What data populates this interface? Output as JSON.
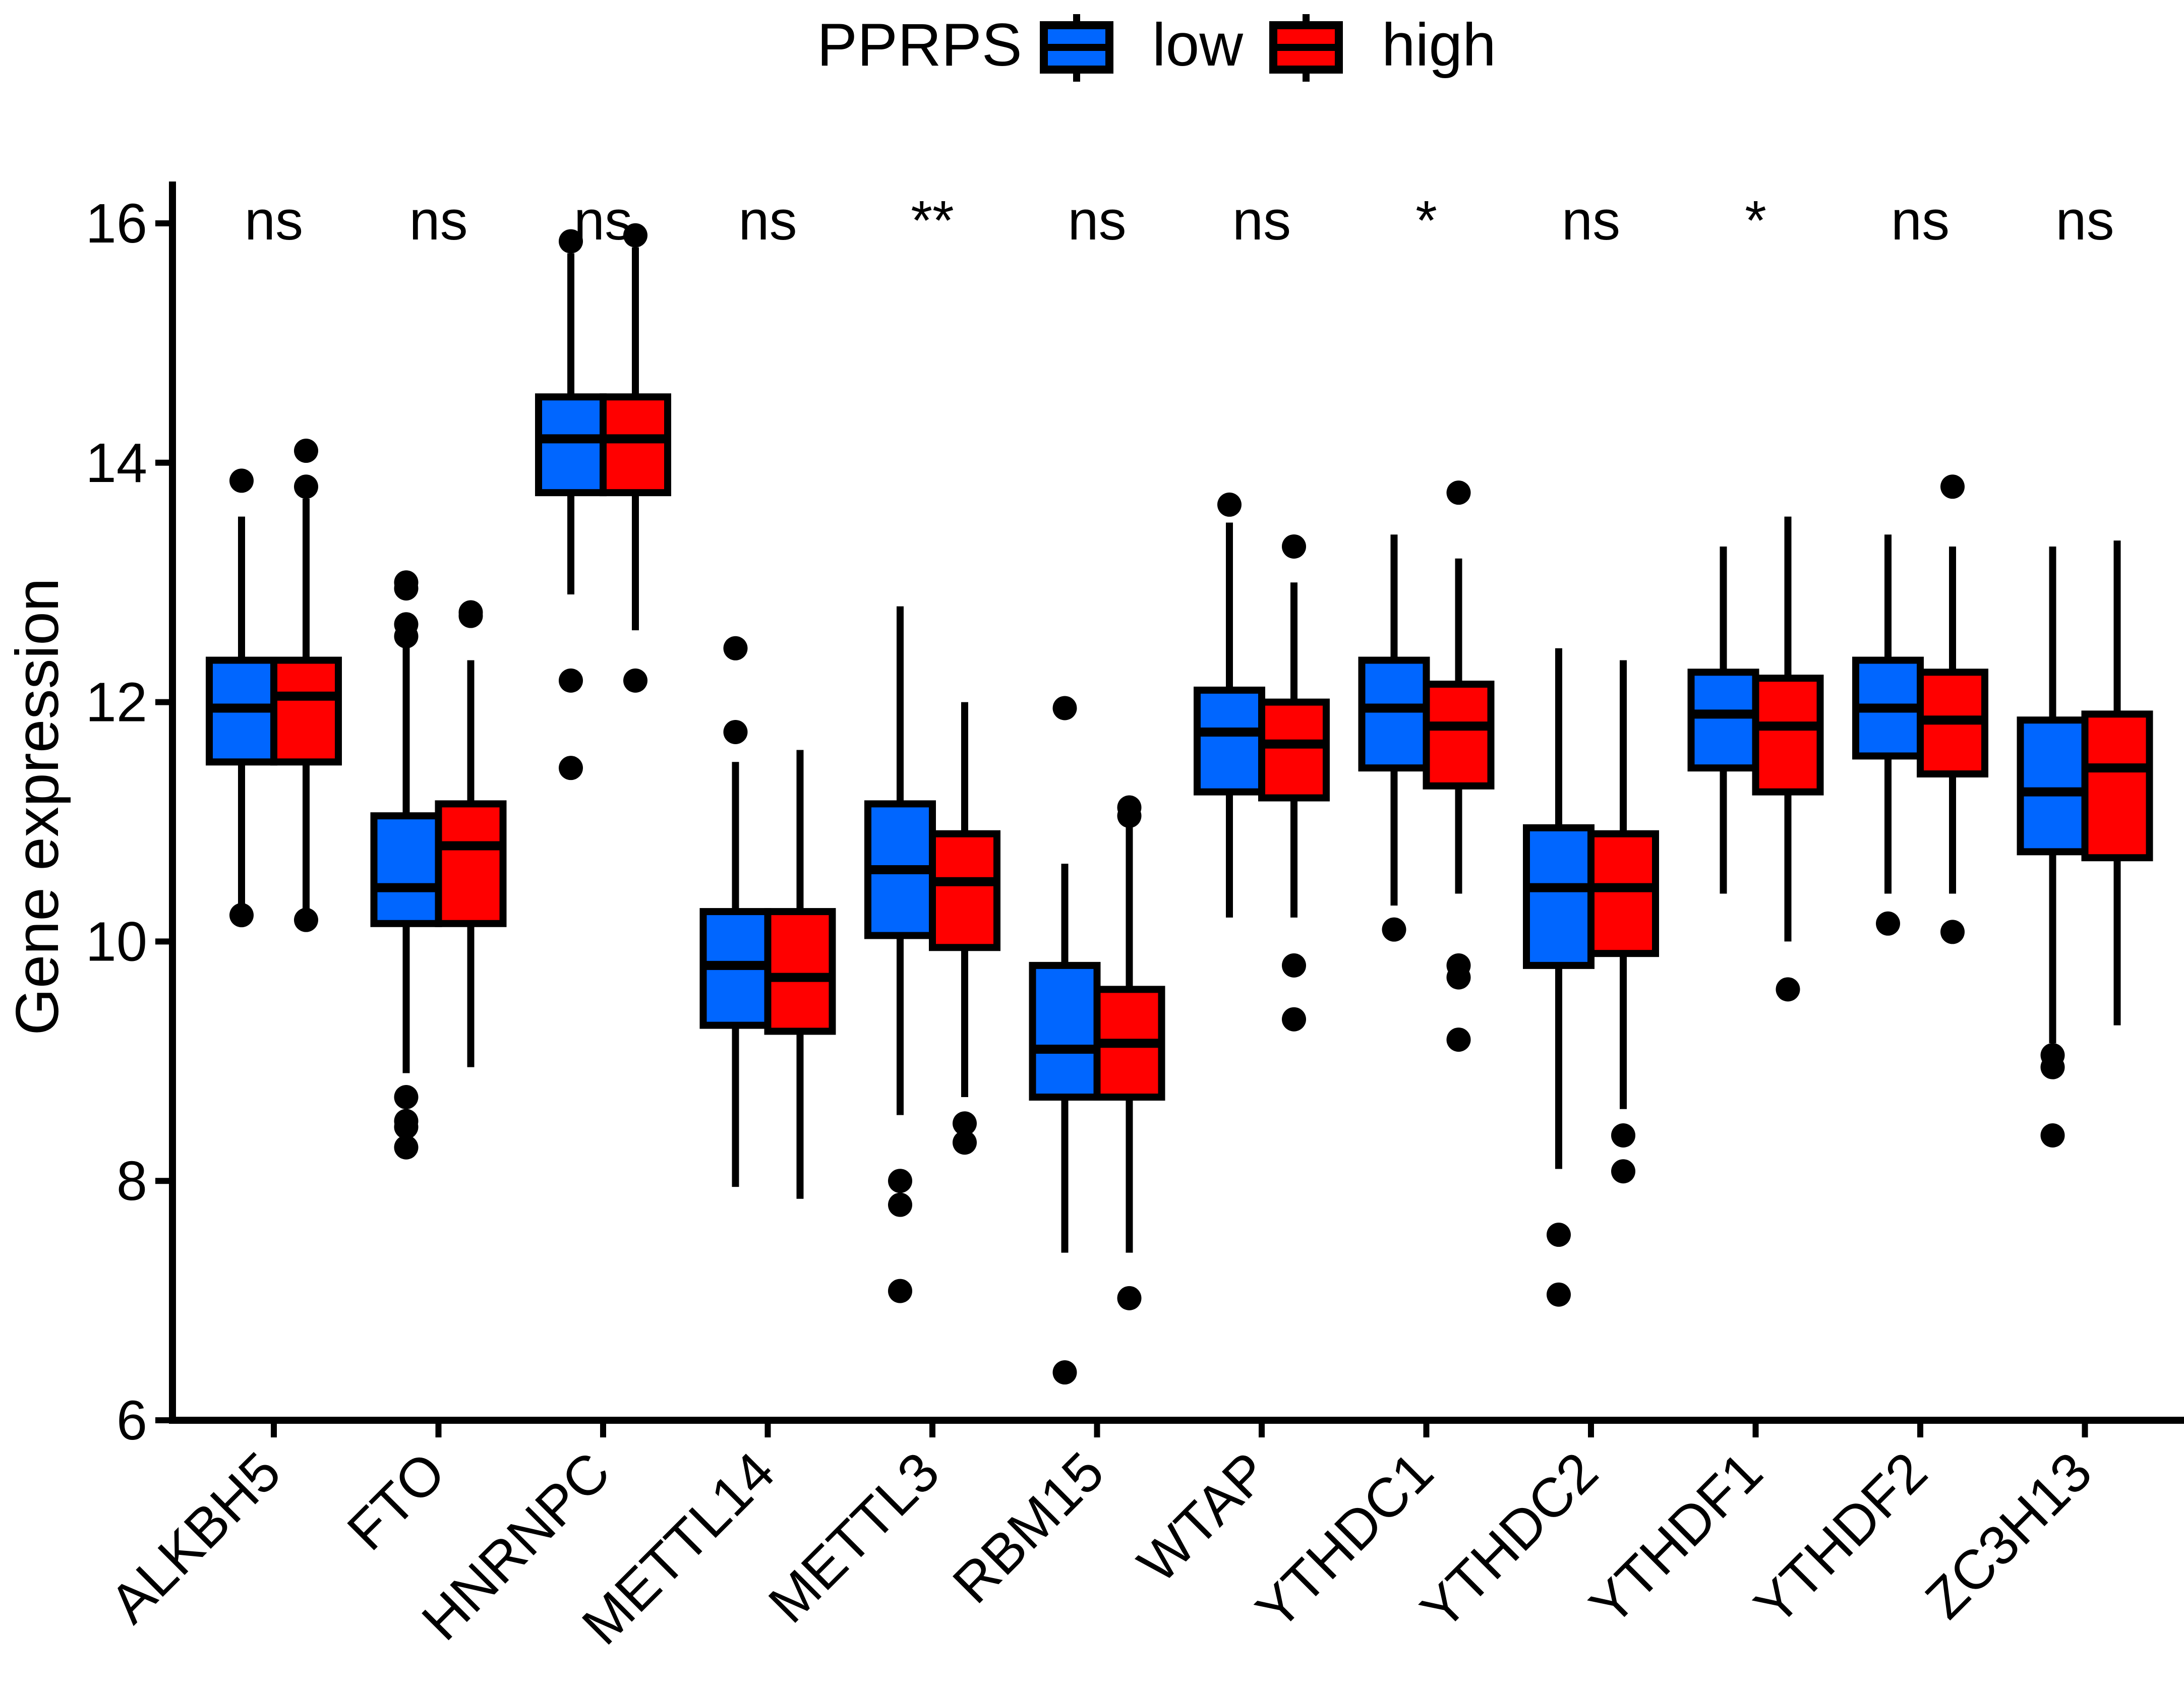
{
  "chart_data": {
    "type": "boxplot",
    "title": "",
    "xlabel": "",
    "ylabel": "Gene expression",
    "ylim": [
      6,
      16.3
    ],
    "yticks": [
      6,
      8,
      10,
      12,
      14,
      16
    ],
    "legend": {
      "title": "PPRPS",
      "position": "top",
      "entries": [
        {
          "name": "low",
          "color": "#0066ff"
        },
        {
          "name": "high",
          "color": "#ff0000"
        }
      ]
    },
    "categories": [
      "ALKBH5",
      "FTO",
      "HNRNPC",
      "METTL14",
      "METTL3",
      "RBM15",
      "WTAP",
      "YTHDC1",
      "YTHDC2",
      "YTHDF1",
      "YTHDF2",
      "ZC3H13"
    ],
    "significance": [
      "ns",
      "ns",
      "ns",
      "ns",
      "**",
      "ns",
      "ns",
      "*",
      "ns",
      "*",
      "ns",
      "ns"
    ],
    "series": [
      {
        "name": "low",
        "color": "#0066ff",
        "boxes": [
          {
            "whisker_low": 10.25,
            "q1": 11.5,
            "median": 11.95,
            "q3": 12.35,
            "whisker_high": 13.55,
            "outliers": [
              13.85,
              10.22
            ]
          },
          {
            "whisker_low": 8.9,
            "q1": 10.15,
            "median": 10.45,
            "q3": 11.05,
            "whisker_high": 12.5,
            "outliers": [
              13.0,
              12.95,
              12.65,
              12.55,
              8.7,
              8.5,
              8.45,
              8.28
            ]
          },
          {
            "whisker_low": 12.9,
            "q1": 13.75,
            "median": 14.2,
            "q3": 14.55,
            "whisker_high": 15.75,
            "outliers": [
              15.85,
              12.18,
              11.45
            ]
          },
          {
            "whisker_low": 7.95,
            "q1": 9.3,
            "median": 9.8,
            "q3": 10.25,
            "whisker_high": 11.5,
            "outliers": [
              12.45,
              11.75
            ]
          },
          {
            "whisker_low": 8.55,
            "q1": 10.05,
            "median": 10.6,
            "q3": 11.15,
            "whisker_high": 12.8,
            "outliers": [
              8.0,
              7.8,
              7.08
            ]
          },
          {
            "whisker_low": 7.4,
            "q1": 8.7,
            "median": 9.1,
            "q3": 9.8,
            "whisker_high": 10.65,
            "outliers": [
              11.95,
              6.4
            ]
          },
          {
            "whisker_low": 10.2,
            "q1": 11.25,
            "median": 11.75,
            "q3": 12.1,
            "whisker_high": 13.5,
            "outliers": [
              13.65
            ]
          },
          {
            "whisker_low": 10.3,
            "q1": 11.45,
            "median": 11.95,
            "q3": 12.35,
            "whisker_high": 13.4,
            "outliers": [
              10.1
            ]
          },
          {
            "whisker_low": 8.1,
            "q1": 9.8,
            "median": 10.45,
            "q3": 10.95,
            "whisker_high": 12.45,
            "outliers": [
              7.55,
              7.05
            ]
          },
          {
            "whisker_low": 10.4,
            "q1": 11.45,
            "median": 11.9,
            "q3": 12.25,
            "whisker_high": 13.3,
            "outliers": []
          },
          {
            "whisker_low": 10.4,
            "q1": 11.55,
            "median": 11.95,
            "q3": 12.35,
            "whisker_high": 13.4,
            "outliers": [
              10.15
            ]
          },
          {
            "whisker_low": 9.15,
            "q1": 10.75,
            "median": 11.25,
            "q3": 11.85,
            "whisker_high": 13.3,
            "outliers": [
              9.05,
              8.95,
              8.38
            ]
          }
        ]
      },
      {
        "name": "high",
        "color": "#ff0000",
        "boxes": [
          {
            "whisker_low": 10.2,
            "q1": 11.5,
            "median": 12.05,
            "q3": 12.35,
            "whisker_high": 13.7,
            "outliers": [
              14.1,
              13.8,
              10.18
            ]
          },
          {
            "whisker_low": 8.95,
            "q1": 10.15,
            "median": 10.8,
            "q3": 11.15,
            "whisker_high": 12.35,
            "outliers": [
              12.75,
              12.72
            ]
          },
          {
            "whisker_low": 12.6,
            "q1": 13.75,
            "median": 14.2,
            "q3": 14.55,
            "whisker_high": 15.8,
            "outliers": [
              15.9,
              12.18
            ]
          },
          {
            "whisker_low": 7.85,
            "q1": 9.25,
            "median": 9.7,
            "q3": 10.25,
            "whisker_high": 11.6,
            "outliers": []
          },
          {
            "whisker_low": 8.7,
            "q1": 9.95,
            "median": 10.5,
            "q3": 10.9,
            "whisker_high": 12.0,
            "outliers": [
              8.48,
              8.32
            ]
          },
          {
            "whisker_low": 7.4,
            "q1": 8.7,
            "median": 9.15,
            "q3": 9.6,
            "whisker_high": 11.0,
            "outliers": [
              11.12,
              11.05,
              7.02
            ]
          },
          {
            "whisker_low": 10.2,
            "q1": 11.2,
            "median": 11.65,
            "q3": 12.0,
            "whisker_high": 13.0,
            "outliers": [
              13.3,
              9.8,
              9.35
            ]
          },
          {
            "whisker_low": 10.4,
            "q1": 11.3,
            "median": 11.8,
            "q3": 12.15,
            "whisker_high": 13.2,
            "outliers": [
              13.75,
              9.8,
              9.7,
              9.18
            ]
          },
          {
            "whisker_low": 8.6,
            "q1": 9.9,
            "median": 10.45,
            "q3": 10.9,
            "whisker_high": 12.35,
            "outliers": [
              8.38,
              8.08
            ]
          },
          {
            "whisker_low": 10.0,
            "q1": 11.25,
            "median": 11.8,
            "q3": 12.2,
            "whisker_high": 13.55,
            "outliers": [
              9.6
            ]
          },
          {
            "whisker_low": 10.4,
            "q1": 11.4,
            "median": 11.85,
            "q3": 12.25,
            "whisker_high": 13.3,
            "outliers": [
              13.8,
              10.08
            ]
          },
          {
            "whisker_low": 9.3,
            "q1": 10.7,
            "median": 11.45,
            "q3": 11.9,
            "whisker_high": 13.35,
            "outliers": []
          }
        ]
      }
    ]
  }
}
